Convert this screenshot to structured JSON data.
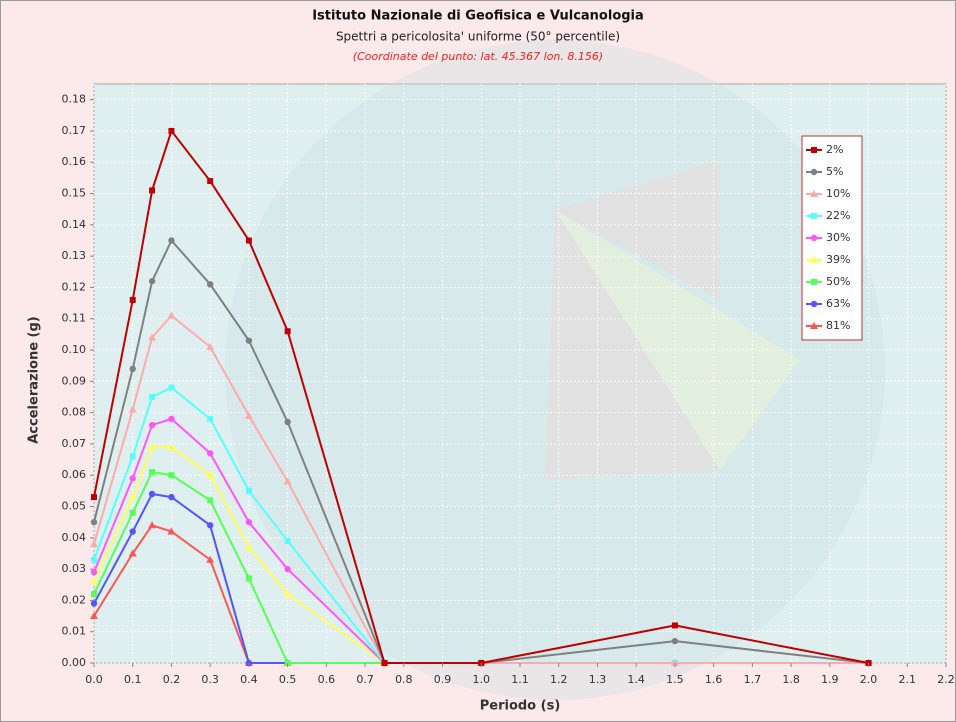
{
  "chart_data": {
    "type": "line",
    "title": "Istituto Nazionale di Geofisica e Vulcanologia",
    "subtitle": "Spettri a pericolosita' uniforme (50° percentile)",
    "annotation": "(Coordinate del punto: lat. 45.367 lon. 8.156)",
    "x_label": "Periodo (s)",
    "y_label": "Accelerazione (g)",
    "x": [
      0,
      0.1,
      0.15,
      0.2,
      0.3,
      0.4,
      0.5,
      0.75,
      1.0,
      1.5,
      2.0
    ],
    "xlim": [
      0,
      2.2
    ],
    "ylim": [
      0,
      0.185
    ],
    "xticks": [
      {
        "value": 0,
        "label": "0.0"
      },
      0.1,
      0.2,
      0.3,
      0.4,
      0.5,
      0.6,
      0.7,
      0.8,
      0.9,
      {
        "value": 1,
        "label": "1.0"
      },
      1.1,
      1.2,
      1.3,
      1.4,
      1.5,
      1.6,
      1.7,
      1.8,
      1.9,
      {
        "value": 2,
        "label": "2.0"
      },
      2.1,
      2.2
    ],
    "yticks": [
      {
        "value": 0,
        "label": "0.00"
      },
      0.01,
      0.02,
      0.03,
      0.04,
      0.05,
      0.06,
      0.07,
      0.08,
      0.09,
      {
        "value": 0.1,
        "label": "0.10"
      },
      0.11,
      0.12,
      0.13,
      0.14,
      0.15,
      0.16,
      0.17,
      0.18
    ],
    "grid": true,
    "legend_position": "upper right",
    "series": [
      {
        "name": "2%",
        "color": "#c00000",
        "values": [
          0.053,
          0.116,
          0.151,
          0.17,
          0.154,
          0.135,
          0.106,
          0.0,
          0.0,
          0.012,
          0.0
        ]
      },
      {
        "name": "5%",
        "color": "#808080",
        "values": [
          0.045,
          0.094,
          0.122,
          0.135,
          0.121,
          0.103,
          0.077,
          0.0,
          0.0,
          0.007,
          0.0
        ]
      },
      {
        "name": "10%",
        "color": "#ffaaaa",
        "values": [
          0.038,
          0.081,
          0.104,
          0.111,
          0.101,
          0.079,
          0.058,
          0.0,
          0.0,
          0.0,
          0.0
        ]
      },
      {
        "name": "22%",
        "color": "#55ffff",
        "values": [
          0.033,
          0.066,
          0.085,
          0.088,
          0.078,
          0.055,
          0.039,
          0.0,
          0.0,
          0.0,
          0.0
        ]
      },
      {
        "name": "30%",
        "color": "#ff55ff",
        "values": [
          0.029,
          0.059,
          0.076,
          0.078,
          0.067,
          0.045,
          0.03,
          0.0,
          0.0,
          0.0,
          0.0
        ]
      },
      {
        "name": "39%",
        "color": "#ffff55",
        "values": [
          0.026,
          0.053,
          0.069,
          0.069,
          0.06,
          0.037,
          0.022,
          0.0,
          0.0,
          0.0,
          0.0
        ]
      },
      {
        "name": "50%",
        "color": "#55ff55",
        "values": [
          0.022,
          0.048,
          0.061,
          0.06,
          0.052,
          0.027,
          0.0,
          0.0,
          0.0,
          0.0,
          0.0
        ]
      },
      {
        "name": "63%",
        "color": "#5555ff",
        "values": [
          0.019,
          0.042,
          0.054,
          0.053,
          0.044,
          0.0,
          0.0,
          0.0,
          0.0,
          0.0,
          0.0
        ]
      },
      {
        "name": "81%",
        "color": "#ff5555",
        "values": [
          0.015,
          0.035,
          0.044,
          0.042,
          0.033,
          0.0,
          0.0,
          0.0,
          0.0,
          0.0,
          0.0
        ]
      }
    ]
  }
}
